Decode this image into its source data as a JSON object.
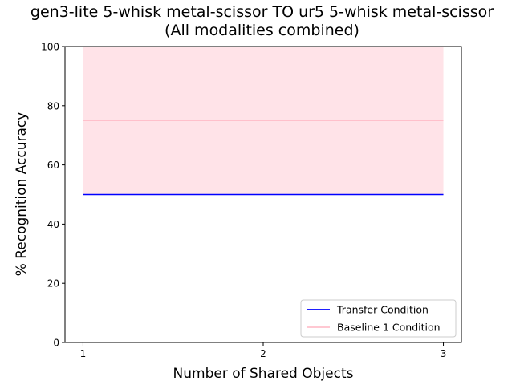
{
  "title_line1": "gen3-lite 5-whisk metal-scissor TO ur5 5-whisk metal-scissor",
  "title_line2": "(All modalities combined)",
  "chart_data": {
    "type": "line",
    "title": "gen3-lite 5-whisk metal-scissor TO ur5 5-whisk metal-scissor (All modalities combined)",
    "xlabel": "Number of Shared Objects",
    "ylabel": "% Recognition Accuracy",
    "x": [
      1,
      2,
      3
    ],
    "x_ticks": [
      "1",
      "2",
      "3"
    ],
    "y_ticks": [
      "0",
      "20",
      "40",
      "60",
      "80",
      "100"
    ],
    "xlim": [
      0.9,
      3.1
    ],
    "ylim": [
      0,
      100
    ],
    "grid": false,
    "legend_position": "lower-right",
    "series": [
      {
        "name": "Transfer Condition",
        "values": [
          50,
          50,
          50
        ],
        "color": "#0000ff"
      },
      {
        "name": "Baseline 1 Condition",
        "values": [
          75,
          75,
          75
        ],
        "color": "#ffc0cb",
        "band_lower": [
          50,
          50,
          50
        ],
        "band_upper": [
          100,
          100,
          100
        ],
        "band_color": "#ffc0cb"
      }
    ]
  }
}
